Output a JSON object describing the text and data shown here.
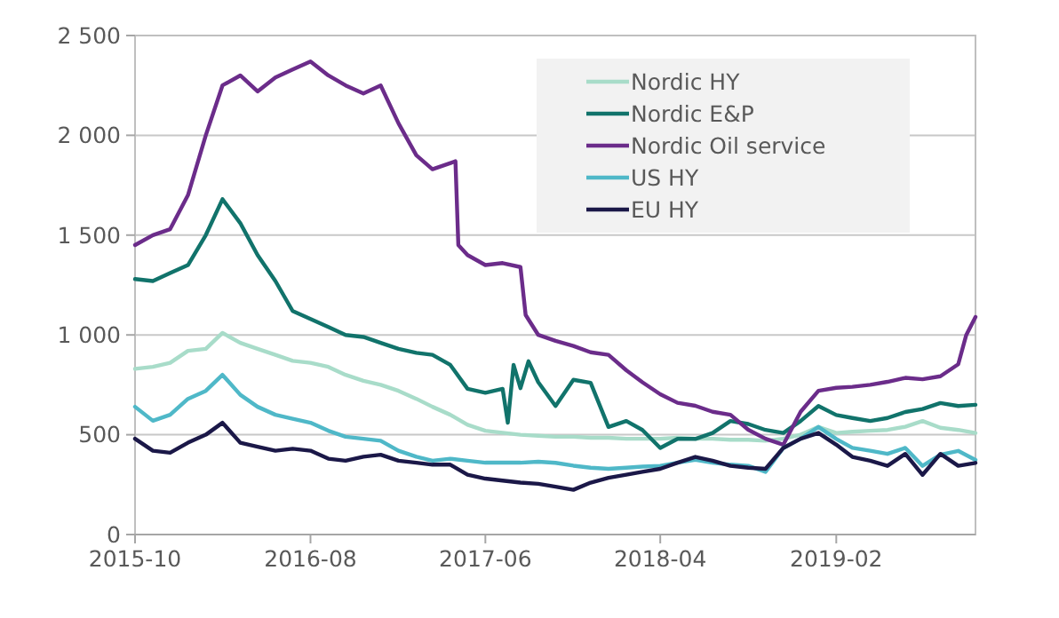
{
  "chart_data": {
    "type": "line",
    "xlim": [
      "2015-10",
      "2019-10"
    ],
    "xticks": [
      "2015-10",
      "2016-08",
      "2017-06",
      "2018-04",
      "2019-02"
    ],
    "ylim": [
      0,
      2500
    ],
    "yticks": [
      0,
      500,
      {
        "value": 1000,
        "label": "1 000"
      },
      {
        "value": 1500,
        "label": "1 500"
      },
      {
        "value": 2000,
        "label": "2 000"
      },
      {
        "value": 2500,
        "label": "2 500"
      }
    ],
    "grid": "y",
    "legend": "top right",
    "marker": "none",
    "line_style": "solid",
    "series": [
      {
        "name": "Nordic HY",
        "color": "#a8dcc9",
        "x": [
          "2015-10",
          "2015-11",
          "2015-12",
          "2016-01",
          "2016-02",
          "2016-03",
          "2016-04",
          "2016-05",
          "2016-06",
          "2016-07",
          "2016-08",
          "2016-09",
          "2016-10",
          "2016-11",
          "2016-12",
          "2017-01",
          "2017-02",
          "2017-03",
          "2017-04",
          "2017-05",
          "2017-06",
          "2017-07",
          "2017-08",
          "2017-09",
          "2017-10",
          "2017-11",
          "2017-12",
          "2018-01",
          "2018-02",
          "2018-03",
          "2018-04",
          "2018-05",
          "2018-06",
          "2018-07",
          "2018-08",
          "2018-09",
          "2018-10",
          "2018-11",
          "2018-12",
          "2019-01",
          "2019-02",
          "2019-03",
          "2019-04",
          "2019-05",
          "2019-06",
          "2019-07",
          "2019-08",
          "2019-09",
          "2019-10"
        ],
        "values": [
          830,
          840,
          860,
          920,
          930,
          1010,
          960,
          930,
          900,
          870,
          860,
          840,
          800,
          770,
          750,
          720,
          680,
          640,
          600,
          550,
          520,
          510,
          500,
          495,
          490,
          490,
          485,
          485,
          480,
          480,
          480,
          485,
          480,
          480,
          475,
          475,
          470,
          480,
          500,
          539,
          509,
          515,
          520,
          524,
          540,
          569,
          535,
          524,
          509
        ]
      },
      {
        "name": "Nordic E&P",
        "color": "#11736b",
        "x": [
          "2015-10",
          "2015-11",
          "2015-12",
          "2016-01",
          "2016-02",
          "2016-03",
          "2016-04",
          "2016-05",
          "2016-06",
          "2016-07",
          "2016-08",
          "2016-09",
          "2016-10",
          "2016-11",
          "2016-12",
          "2017-01",
          "2017-02",
          "2017-03",
          "2017-04",
          "2017-05",
          "2017-06",
          "2017-07-01",
          "2017-07-10",
          "2017-07-20",
          "2017-08-01",
          "2017-08-15",
          "2017-09",
          "2017-10",
          "2017-11",
          "2017-12",
          "2018-01",
          "2018-02",
          "2018-03",
          "2018-04",
          "2018-05",
          "2018-06",
          "2018-07",
          "2018-08",
          "2018-09",
          "2018-10",
          "2018-11",
          "2018-12",
          "2019-01",
          "2019-02",
          "2019-03",
          "2019-04",
          "2019-05",
          "2019-06",
          "2019-07",
          "2019-08",
          "2019-09",
          "2019-10"
        ],
        "values": [
          1280,
          1270,
          1310,
          1350,
          1500,
          1680,
          1560,
          1400,
          1270,
          1120,
          1080,
          1040,
          1000,
          990,
          960,
          930,
          910,
          900,
          850,
          730,
          710,
          730,
          560,
          850,
          733,
          868,
          763,
          644,
          775,
          760,
          539,
          569,
          524,
          434,
          479,
          479,
          509,
          569,
          554,
          524,
          509,
          569,
          644,
          599,
          584,
          569,
          584,
          614,
          629,
          659,
          644,
          650
        ]
      },
      {
        "name": "Nordic Oil service",
        "color": "#6b2c8a",
        "x": [
          "2015-10",
          "2015-11",
          "2015-12",
          "2016-01",
          "2016-02",
          "2016-03",
          "2016-04",
          "2016-05",
          "2016-06",
          "2016-07",
          "2016-08",
          "2016-09",
          "2016-10",
          "2016-11",
          "2016-12",
          "2017-01",
          "2017-02",
          "2017-03",
          "2017-04-10",
          "2017-04-15",
          "2017-05",
          "2017-06",
          "2017-07",
          "2017-08-01",
          "2017-08-10",
          "2017-09",
          "2017-10",
          "2017-11",
          "2017-12",
          "2018-01",
          "2018-02",
          "2018-03",
          "2018-04",
          "2018-05",
          "2018-06",
          "2018-07",
          "2018-08",
          "2018-09",
          "2018-10",
          "2018-11",
          "2018-12",
          "2019-01",
          "2019-02",
          "2019-03",
          "2019-04",
          "2019-05",
          "2019-06",
          "2019-07",
          "2019-08",
          "2019-09-01",
          "2019-09-15",
          "2019-10"
        ],
        "values": [
          1450,
          1500,
          1530,
          1700,
          2000,
          2250,
          2300,
          2220,
          2290,
          2330,
          2370,
          2300,
          2250,
          2210,
          2250,
          2060,
          1900,
          1830,
          1870,
          1450,
          1400,
          1350,
          1360,
          1340,
          1100,
          1000,
          970,
          945,
          913,
          900,
          823,
          763,
          703,
          660,
          645,
          615,
          600,
          525,
          480,
          450,
          615,
          720,
          735,
          740,
          750,
          765,
          785,
          778,
          793,
          853,
          1000,
          1090
        ]
      },
      {
        "name": "US HY",
        "color": "#4fb8c8",
        "x": [
          "2015-10",
          "2015-11",
          "2015-12",
          "2016-01",
          "2016-02",
          "2016-03",
          "2016-04",
          "2016-05",
          "2016-06",
          "2016-07",
          "2016-08",
          "2016-09",
          "2016-10",
          "2016-11",
          "2016-12",
          "2017-01",
          "2017-02",
          "2017-03",
          "2017-04",
          "2017-05",
          "2017-06",
          "2017-07",
          "2017-08",
          "2017-09",
          "2017-10",
          "2017-11",
          "2017-12",
          "2018-01",
          "2018-02",
          "2018-03",
          "2018-04",
          "2018-05",
          "2018-06",
          "2018-07",
          "2018-08",
          "2018-09",
          "2018-10",
          "2018-11",
          "2018-12",
          "2019-01",
          "2019-02",
          "2019-03",
          "2019-04",
          "2019-05",
          "2019-06",
          "2019-07",
          "2019-08",
          "2019-09",
          "2019-10"
        ],
        "values": [
          640,
          570,
          600,
          680,
          720,
          800,
          700,
          640,
          600,
          580,
          560,
          520,
          490,
          480,
          470,
          420,
          390,
          370,
          380,
          370,
          360,
          360,
          360,
          365,
          359,
          345,
          335,
          329,
          335,
          340,
          344,
          360,
          374,
          360,
          350,
          344,
          314,
          434,
          480,
          539,
          479,
          434,
          420,
          404,
          434,
          344,
          400,
          419,
          374
        ]
      },
      {
        "name": "EU HY",
        "color": "#1b1848",
        "x": [
          "2015-10",
          "2015-11",
          "2015-12",
          "2016-01",
          "2016-02",
          "2016-03",
          "2016-04",
          "2016-05",
          "2016-06",
          "2016-07",
          "2016-08",
          "2016-09",
          "2016-10",
          "2016-11",
          "2016-12",
          "2017-01",
          "2017-02",
          "2017-03",
          "2017-04",
          "2017-05",
          "2017-06",
          "2017-07",
          "2017-08",
          "2017-09",
          "2017-10",
          "2017-11",
          "2017-12",
          "2018-01",
          "2018-02",
          "2018-03",
          "2018-04",
          "2018-05",
          "2018-06",
          "2018-07",
          "2018-08",
          "2018-09",
          "2018-10",
          "2018-11",
          "2018-12",
          "2019-01",
          "2019-02",
          "2019-03",
          "2019-04",
          "2019-05",
          "2019-06",
          "2019-07",
          "2019-08",
          "2019-09",
          "2019-10"
        ],
        "values": [
          480,
          420,
          410,
          460,
          500,
          560,
          460,
          440,
          420,
          430,
          420,
          380,
          370,
          390,
          400,
          370,
          360,
          350,
          350,
          300,
          280,
          270,
          260,
          254,
          240,
          224,
          260,
          284,
          300,
          314,
          329,
          360,
          389,
          370,
          344,
          335,
          329,
          434,
          480,
          509,
          450,
          389,
          370,
          344,
          404,
          299,
          404,
          344,
          359
        ]
      }
    ]
  }
}
